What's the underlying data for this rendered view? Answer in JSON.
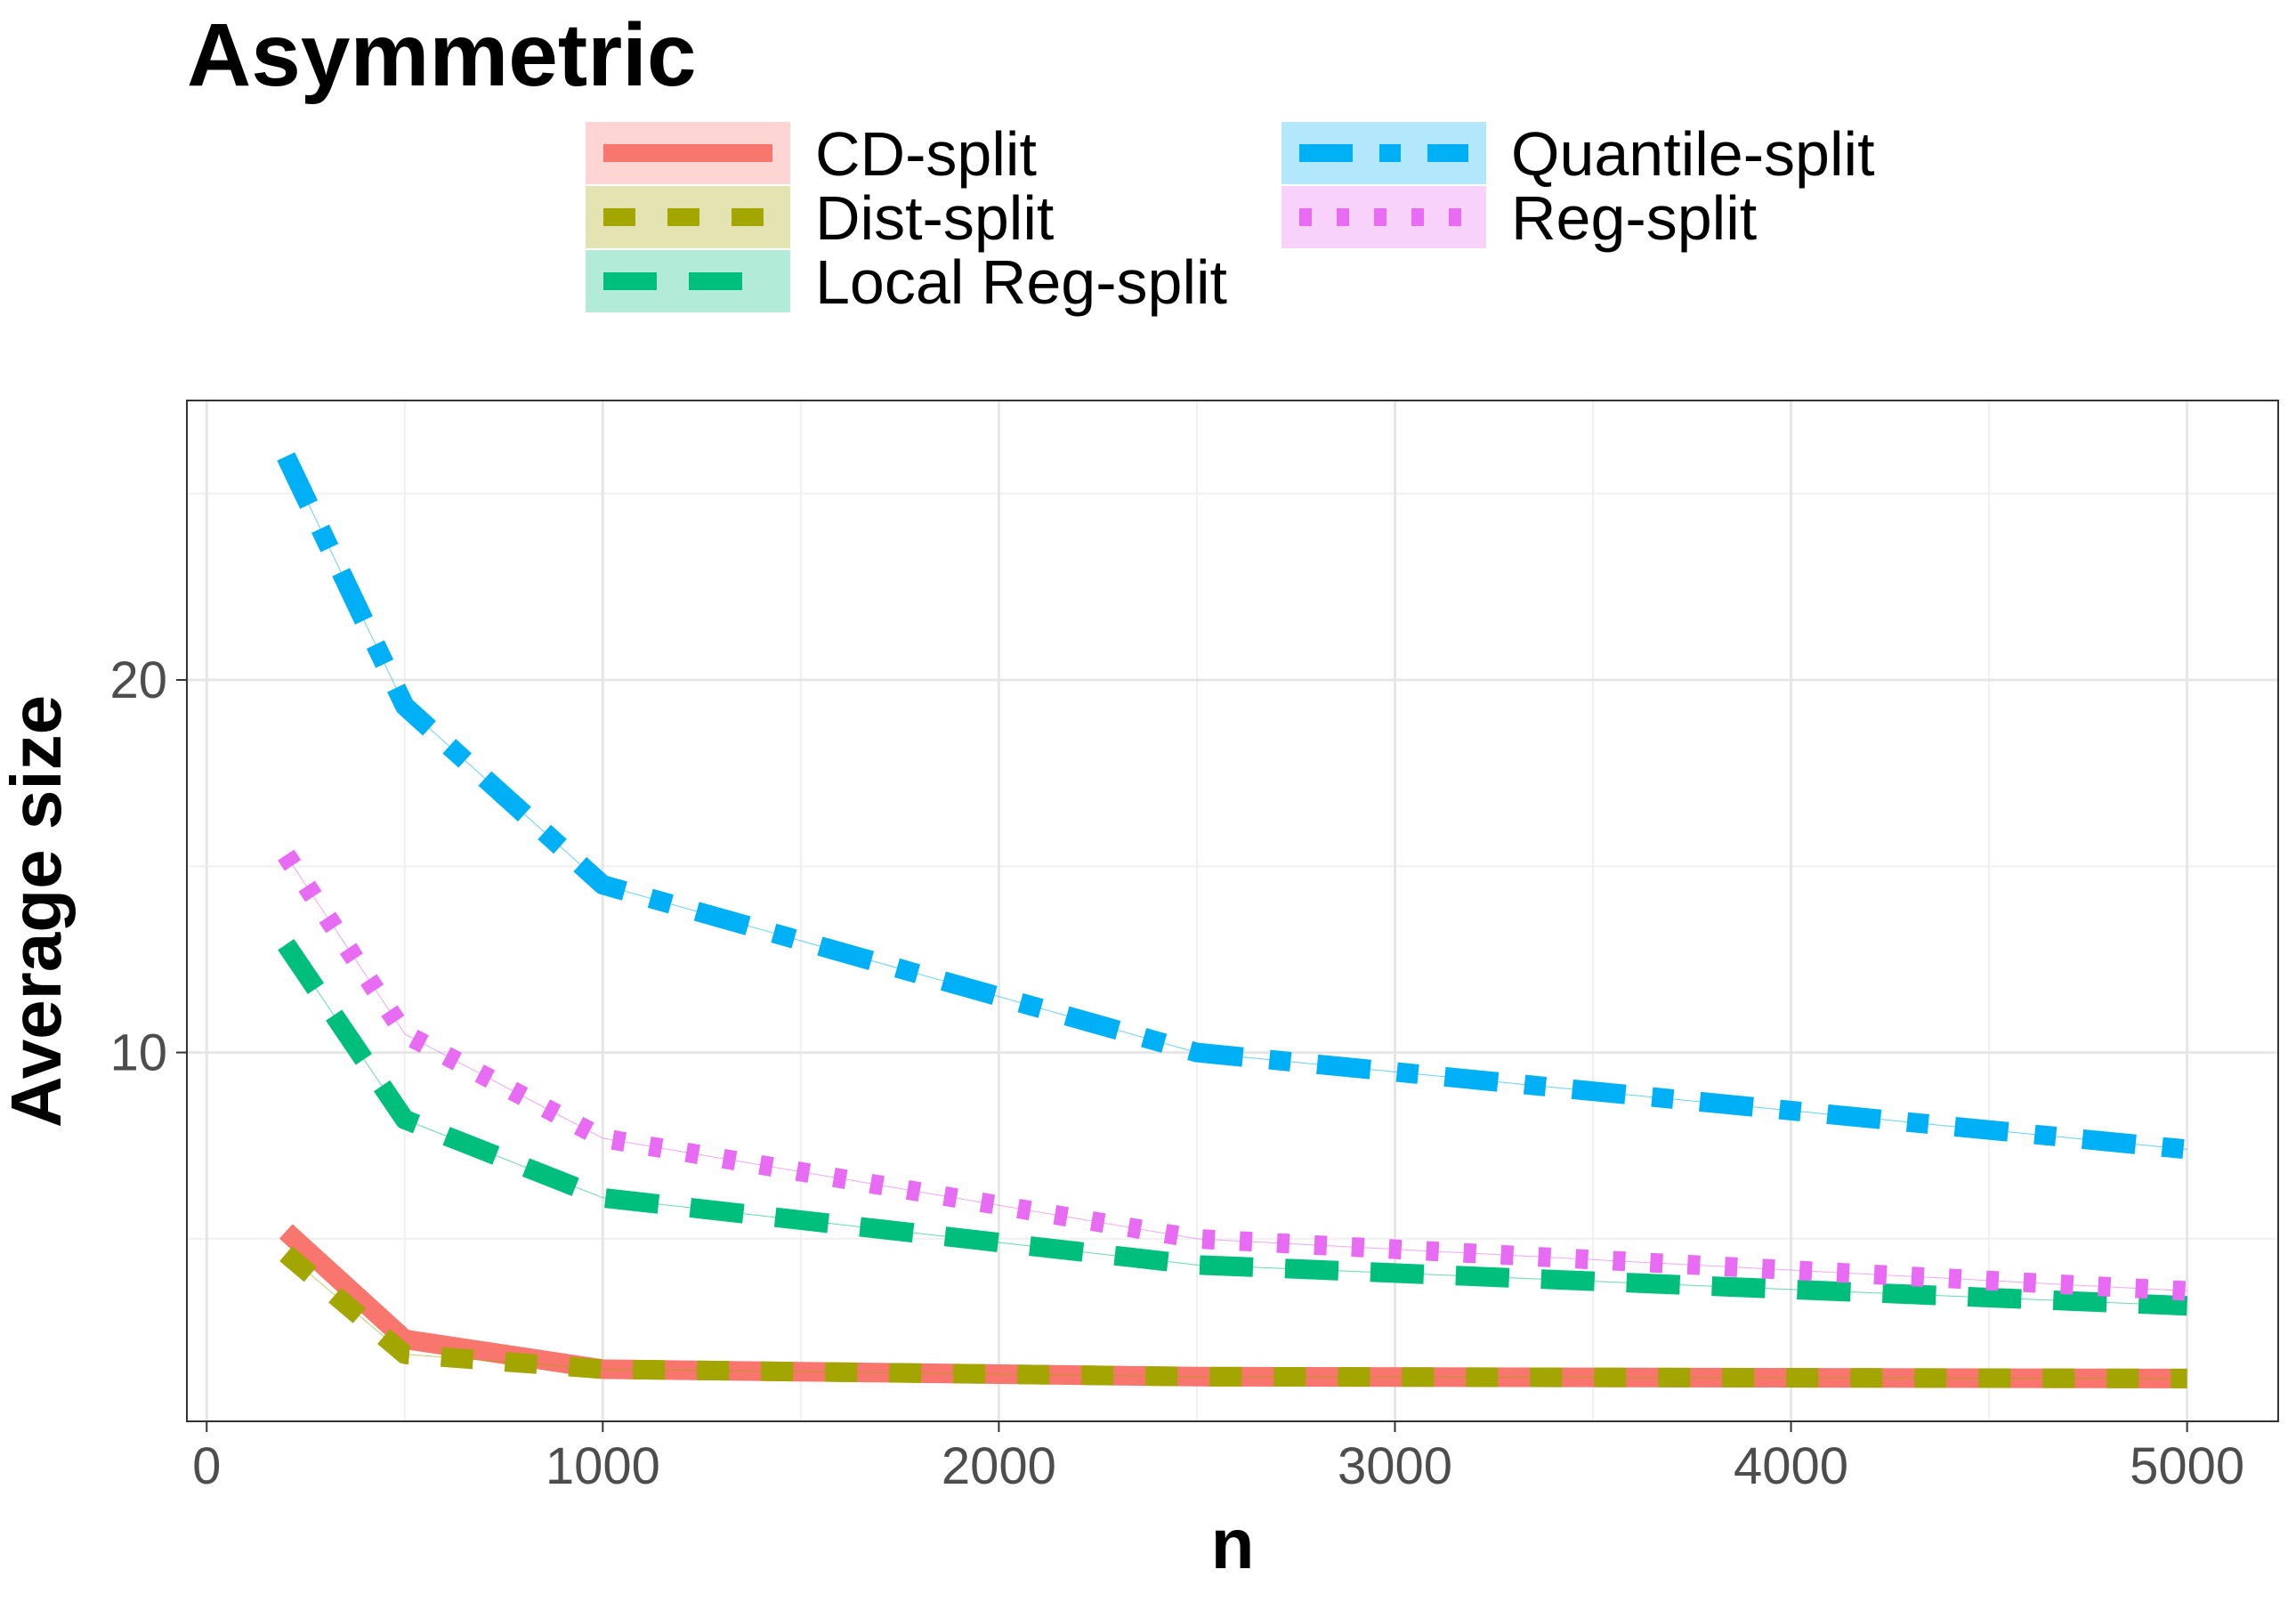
{
  "chart_data": {
    "type": "line",
    "title": "Asymmetric",
    "xlabel": "n",
    "ylabel": "Average size",
    "xlim": [
      -50,
      5230
    ],
    "ylim": [
      0.1,
      27.5
    ],
    "x_ticks": [
      0,
      1000,
      2000,
      3000,
      4000,
      5000
    ],
    "x_tick_labels": [
      "0",
      "1000",
      "2000",
      "3000",
      "4000",
      "5000"
    ],
    "y_ticks": [
      10,
      20
    ],
    "y_tick_labels": [
      "10",
      "20"
    ],
    "grid": true,
    "legend_position": "top",
    "x": [
      200,
      500,
      1000,
      2500,
      5000
    ],
    "series": [
      {
        "name": "CD-split",
        "color": "#F8766D",
        "dash": "solid",
        "values": [
          5.2,
          2.3,
          1.5,
          1.3,
          1.25
        ]
      },
      {
        "name": "Dist-split",
        "color": "#A3A500",
        "dash": "dashed",
        "values": [
          4.6,
          1.9,
          1.5,
          1.3,
          1.25
        ]
      },
      {
        "name": "Local Reg-split",
        "color": "#00BF7D",
        "dash": "longdash",
        "values": [
          12.9,
          8.2,
          6.1,
          4.3,
          3.2
        ]
      },
      {
        "name": "Quantile-split",
        "color": "#00B0F6",
        "dash": "twodash",
        "values": [
          26.0,
          19.3,
          14.5,
          10.0,
          7.4
        ]
      },
      {
        "name": "Reg-split",
        "color": "#E76BF3",
        "dash": "dotted",
        "values": [
          15.3,
          10.5,
          7.7,
          5.0,
          3.6
        ]
      }
    ]
  }
}
